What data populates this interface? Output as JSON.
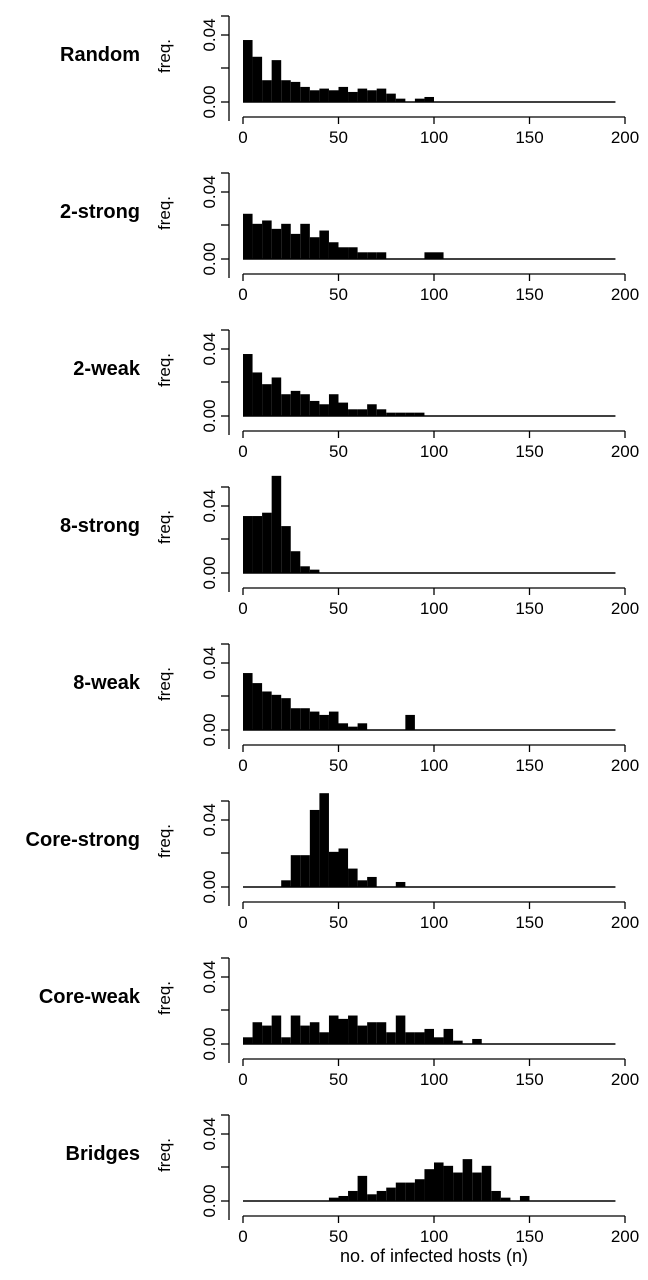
{
  "chart_data": {
    "type": "bar",
    "layout": "small-multiples",
    "xlabel": "no. of infected hosts (n)",
    "ylabel": "freq.",
    "xlim": [
      0,
      200
    ],
    "ylim": [
      0,
      0.06
    ],
    "xticks": [
      "0",
      "50",
      "100",
      "150",
      "200"
    ],
    "yticks": [
      "0.00",
      "0.04"
    ],
    "bin_width": 5,
    "baseline_color": "#000000",
    "bar_color": "#000000",
    "panels": [
      {
        "name": "Random",
        "bins": [
          {
            "x0": 0,
            "y": 0.037
          },
          {
            "x0": 5,
            "y": 0.027
          },
          {
            "x0": 10,
            "y": 0.013
          },
          {
            "x0": 15,
            "y": 0.025
          },
          {
            "x0": 20,
            "y": 0.013
          },
          {
            "x0": 25,
            "y": 0.012
          },
          {
            "x0": 30,
            "y": 0.009
          },
          {
            "x0": 35,
            "y": 0.007
          },
          {
            "x0": 40,
            "y": 0.008
          },
          {
            "x0": 45,
            "y": 0.007
          },
          {
            "x0": 50,
            "y": 0.009
          },
          {
            "x0": 55,
            "y": 0.006
          },
          {
            "x0": 60,
            "y": 0.008
          },
          {
            "x0": 65,
            "y": 0.007
          },
          {
            "x0": 70,
            "y": 0.008
          },
          {
            "x0": 75,
            "y": 0.005
          },
          {
            "x0": 80,
            "y": 0.002
          },
          {
            "x0": 90,
            "y": 0.002
          },
          {
            "x0": 95,
            "y": 0.003
          }
        ]
      },
      {
        "name": "2-strong",
        "bins": [
          {
            "x0": 0,
            "y": 0.027
          },
          {
            "x0": 5,
            "y": 0.021
          },
          {
            "x0": 10,
            "y": 0.023
          },
          {
            "x0": 15,
            "y": 0.018
          },
          {
            "x0": 20,
            "y": 0.021
          },
          {
            "x0": 25,
            "y": 0.015
          },
          {
            "x0": 30,
            "y": 0.021
          },
          {
            "x0": 35,
            "y": 0.013
          },
          {
            "x0": 40,
            "y": 0.017
          },
          {
            "x0": 45,
            "y": 0.01
          },
          {
            "x0": 50,
            "y": 0.007
          },
          {
            "x0": 55,
            "y": 0.007
          },
          {
            "x0": 60,
            "y": 0.004
          },
          {
            "x0": 65,
            "y": 0.004
          },
          {
            "x0": 70,
            "y": 0.004
          },
          {
            "x0": 95,
            "y": 0.004
          },
          {
            "x0": 100,
            "y": 0.004
          }
        ]
      },
      {
        "name": "2-weak",
        "bins": [
          {
            "x0": 0,
            "y": 0.037
          },
          {
            "x0": 5,
            "y": 0.026
          },
          {
            "x0": 10,
            "y": 0.019
          },
          {
            "x0": 15,
            "y": 0.023
          },
          {
            "x0": 20,
            "y": 0.013
          },
          {
            "x0": 25,
            "y": 0.015
          },
          {
            "x0": 30,
            "y": 0.013
          },
          {
            "x0": 35,
            "y": 0.009
          },
          {
            "x0": 40,
            "y": 0.007
          },
          {
            "x0": 45,
            "y": 0.013
          },
          {
            "x0": 50,
            "y": 0.008
          },
          {
            "x0": 55,
            "y": 0.004
          },
          {
            "x0": 60,
            "y": 0.004
          },
          {
            "x0": 65,
            "y": 0.007
          },
          {
            "x0": 70,
            "y": 0.004
          },
          {
            "x0": 75,
            "y": 0.002
          },
          {
            "x0": 80,
            "y": 0.002
          },
          {
            "x0": 85,
            "y": 0.002
          },
          {
            "x0": 90,
            "y": 0.002
          }
        ]
      },
      {
        "name": "8-strong",
        "bins": [
          {
            "x0": 0,
            "y": 0.034
          },
          {
            "x0": 5,
            "y": 0.034
          },
          {
            "x0": 10,
            "y": 0.036
          },
          {
            "x0": 15,
            "y": 0.058
          },
          {
            "x0": 20,
            "y": 0.028
          },
          {
            "x0": 25,
            "y": 0.013
          },
          {
            "x0": 30,
            "y": 0.004
          },
          {
            "x0": 35,
            "y": 0.002
          }
        ]
      },
      {
        "name": "8-weak",
        "bins": [
          {
            "x0": 0,
            "y": 0.034
          },
          {
            "x0": 5,
            "y": 0.028
          },
          {
            "x0": 10,
            "y": 0.023
          },
          {
            "x0": 15,
            "y": 0.021
          },
          {
            "x0": 20,
            "y": 0.019
          },
          {
            "x0": 25,
            "y": 0.013
          },
          {
            "x0": 30,
            "y": 0.013
          },
          {
            "x0": 35,
            "y": 0.011
          },
          {
            "x0": 40,
            "y": 0.009
          },
          {
            "x0": 45,
            "y": 0.011
          },
          {
            "x0": 50,
            "y": 0.004
          },
          {
            "x0": 55,
            "y": 0.002
          },
          {
            "x0": 60,
            "y": 0.004
          },
          {
            "x0": 85,
            "y": 0.009
          }
        ]
      },
      {
        "name": "Core-strong",
        "bins": [
          {
            "x0": 20,
            "y": 0.004
          },
          {
            "x0": 25,
            "y": 0.019
          },
          {
            "x0": 30,
            "y": 0.019
          },
          {
            "x0": 35,
            "y": 0.046
          },
          {
            "x0": 40,
            "y": 0.056
          },
          {
            "x0": 45,
            "y": 0.021
          },
          {
            "x0": 50,
            "y": 0.023
          },
          {
            "x0": 55,
            "y": 0.011
          },
          {
            "x0": 60,
            "y": 0.004
          },
          {
            "x0": 65,
            "y": 0.006
          },
          {
            "x0": 80,
            "y": 0.003
          }
        ]
      },
      {
        "name": "Core-weak",
        "bins": [
          {
            "x0": 0,
            "y": 0.004
          },
          {
            "x0": 5,
            "y": 0.013
          },
          {
            "x0": 10,
            "y": 0.011
          },
          {
            "x0": 15,
            "y": 0.017
          },
          {
            "x0": 20,
            "y": 0.004
          },
          {
            "x0": 25,
            "y": 0.017
          },
          {
            "x0": 30,
            "y": 0.011
          },
          {
            "x0": 35,
            "y": 0.013
          },
          {
            "x0": 40,
            "y": 0.007
          },
          {
            "x0": 45,
            "y": 0.017
          },
          {
            "x0": 50,
            "y": 0.015
          },
          {
            "x0": 55,
            "y": 0.017
          },
          {
            "x0": 60,
            "y": 0.011
          },
          {
            "x0": 65,
            "y": 0.013
          },
          {
            "x0": 70,
            "y": 0.013
          },
          {
            "x0": 75,
            "y": 0.007
          },
          {
            "x0": 80,
            "y": 0.017
          },
          {
            "x0": 85,
            "y": 0.007
          },
          {
            "x0": 90,
            "y": 0.007
          },
          {
            "x0": 95,
            "y": 0.009
          },
          {
            "x0": 100,
            "y": 0.004
          },
          {
            "x0": 105,
            "y": 0.009
          },
          {
            "x0": 110,
            "y": 0.002
          },
          {
            "x0": 120,
            "y": 0.003
          }
        ]
      },
      {
        "name": "Bridges",
        "bins": [
          {
            "x0": 45,
            "y": 0.002
          },
          {
            "x0": 50,
            "y": 0.003
          },
          {
            "x0": 55,
            "y": 0.006
          },
          {
            "x0": 60,
            "y": 0.015
          },
          {
            "x0": 65,
            "y": 0.004
          },
          {
            "x0": 70,
            "y": 0.006
          },
          {
            "x0": 75,
            "y": 0.008
          },
          {
            "x0": 80,
            "y": 0.011
          },
          {
            "x0": 85,
            "y": 0.011
          },
          {
            "x0": 90,
            "y": 0.013
          },
          {
            "x0": 95,
            "y": 0.019
          },
          {
            "x0": 100,
            "y": 0.023
          },
          {
            "x0": 105,
            "y": 0.021
          },
          {
            "x0": 110,
            "y": 0.017
          },
          {
            "x0": 115,
            "y": 0.025
          },
          {
            "x0": 120,
            "y": 0.017
          },
          {
            "x0": 125,
            "y": 0.021
          },
          {
            "x0": 130,
            "y": 0.006
          },
          {
            "x0": 135,
            "y": 0.002
          },
          {
            "x0": 145,
            "y": 0.003
          }
        ]
      }
    ]
  }
}
